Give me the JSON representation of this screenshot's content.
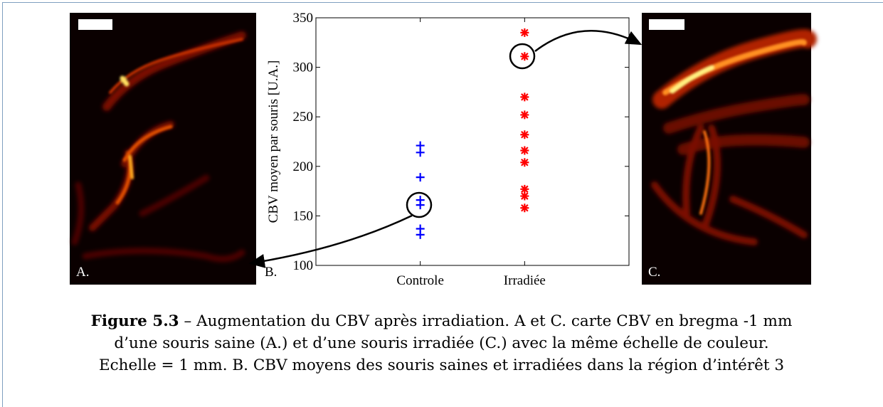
{
  "panels": [
    {
      "label": "A."
    },
    {
      "label": "B."
    },
    {
      "label": "C."
    }
  ],
  "chart_data": {
    "type": "strip",
    "ylabel": "CBV moyen par souris [U.A.]",
    "categories": [
      "Controle",
      "Irradiée"
    ],
    "series": [
      {
        "color": "#0000ff",
        "marker": "plus",
        "values": [
          221,
          214,
          189,
          166,
          161,
          137,
          131
        ]
      },
      {
        "color": "#ff0000",
        "marker": "star",
        "values": [
          335,
          311,
          270,
          252,
          232,
          216,
          204,
          177,
          170,
          158
        ]
      }
    ],
    "ylim": [
      100,
      350
    ],
    "yticks": [
      100,
      150,
      200,
      250,
      300,
      350
    ]
  },
  "caption": {
    "label": "Figure 5.3",
    "lines": [
      "– Augmentation du CBV après irradiation. A et C. carte CBV en bregma -1 mm",
      "d’une souris saine (A.) et d’une souris irradiée (C.) avec la même échelle de couleur.",
      "Echelle = 1 mm. B. CBV moyens des souris saines et irradiées dans la région d’intérêt 3"
    ]
  }
}
